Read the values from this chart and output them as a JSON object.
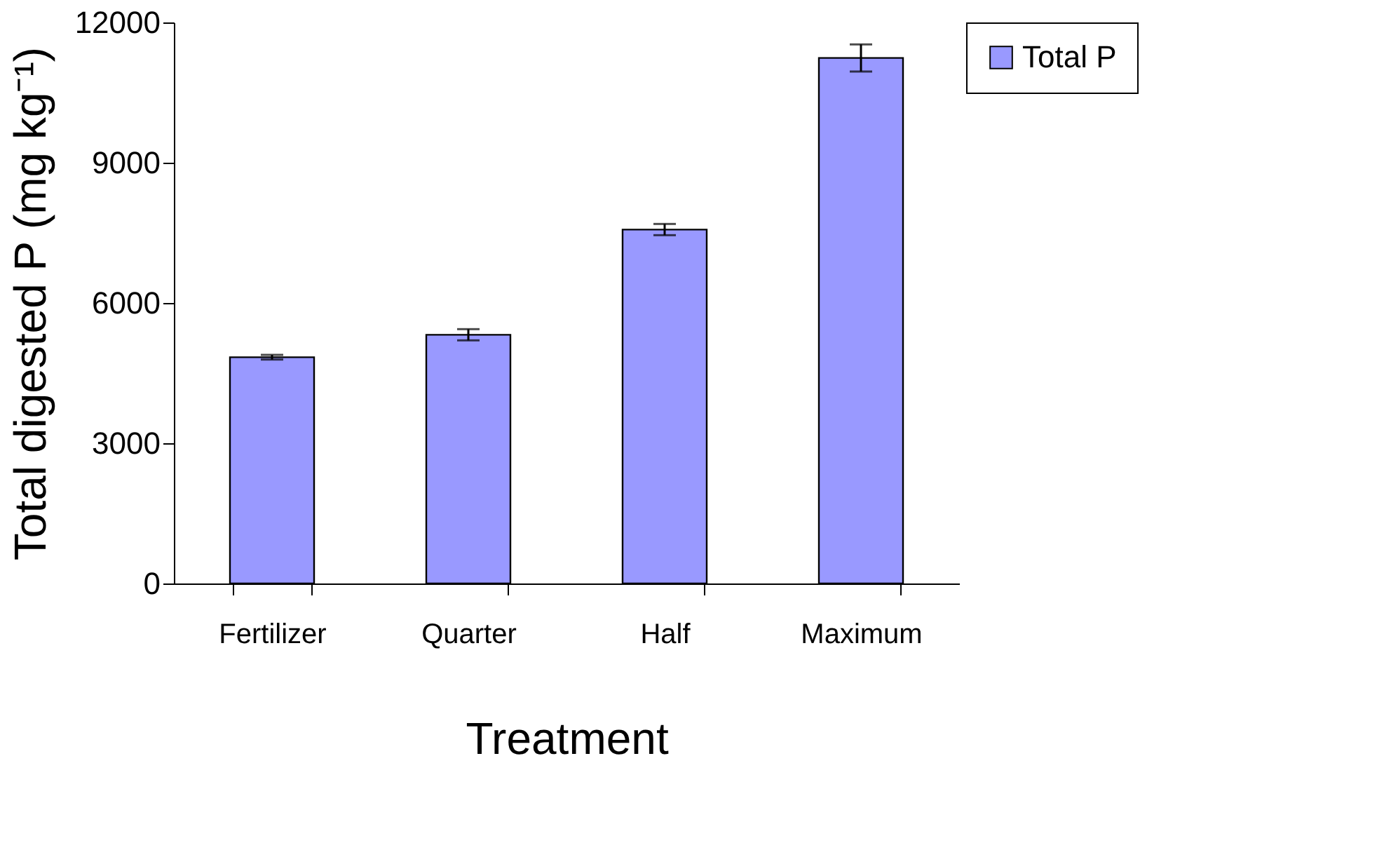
{
  "chart_data": {
    "type": "bar",
    "xlabel": "Treatment",
    "ylabel": "Total digested P (mg kg⁻¹)",
    "categories": [
      "Fertilizer",
      "Quarter",
      "Half",
      "Maximum"
    ],
    "series": [
      {
        "name": "Total P",
        "color": "#9999ff",
        "values": [
          4840,
          5320,
          7570,
          11240
        ],
        "errors": [
          50,
          120,
          120,
          290
        ]
      }
    ],
    "ylim": [
      0,
      12000
    ],
    "yticks": [
      0,
      3000,
      6000,
      9000,
      12000
    ],
    "grid": false,
    "legend": "top right"
  }
}
